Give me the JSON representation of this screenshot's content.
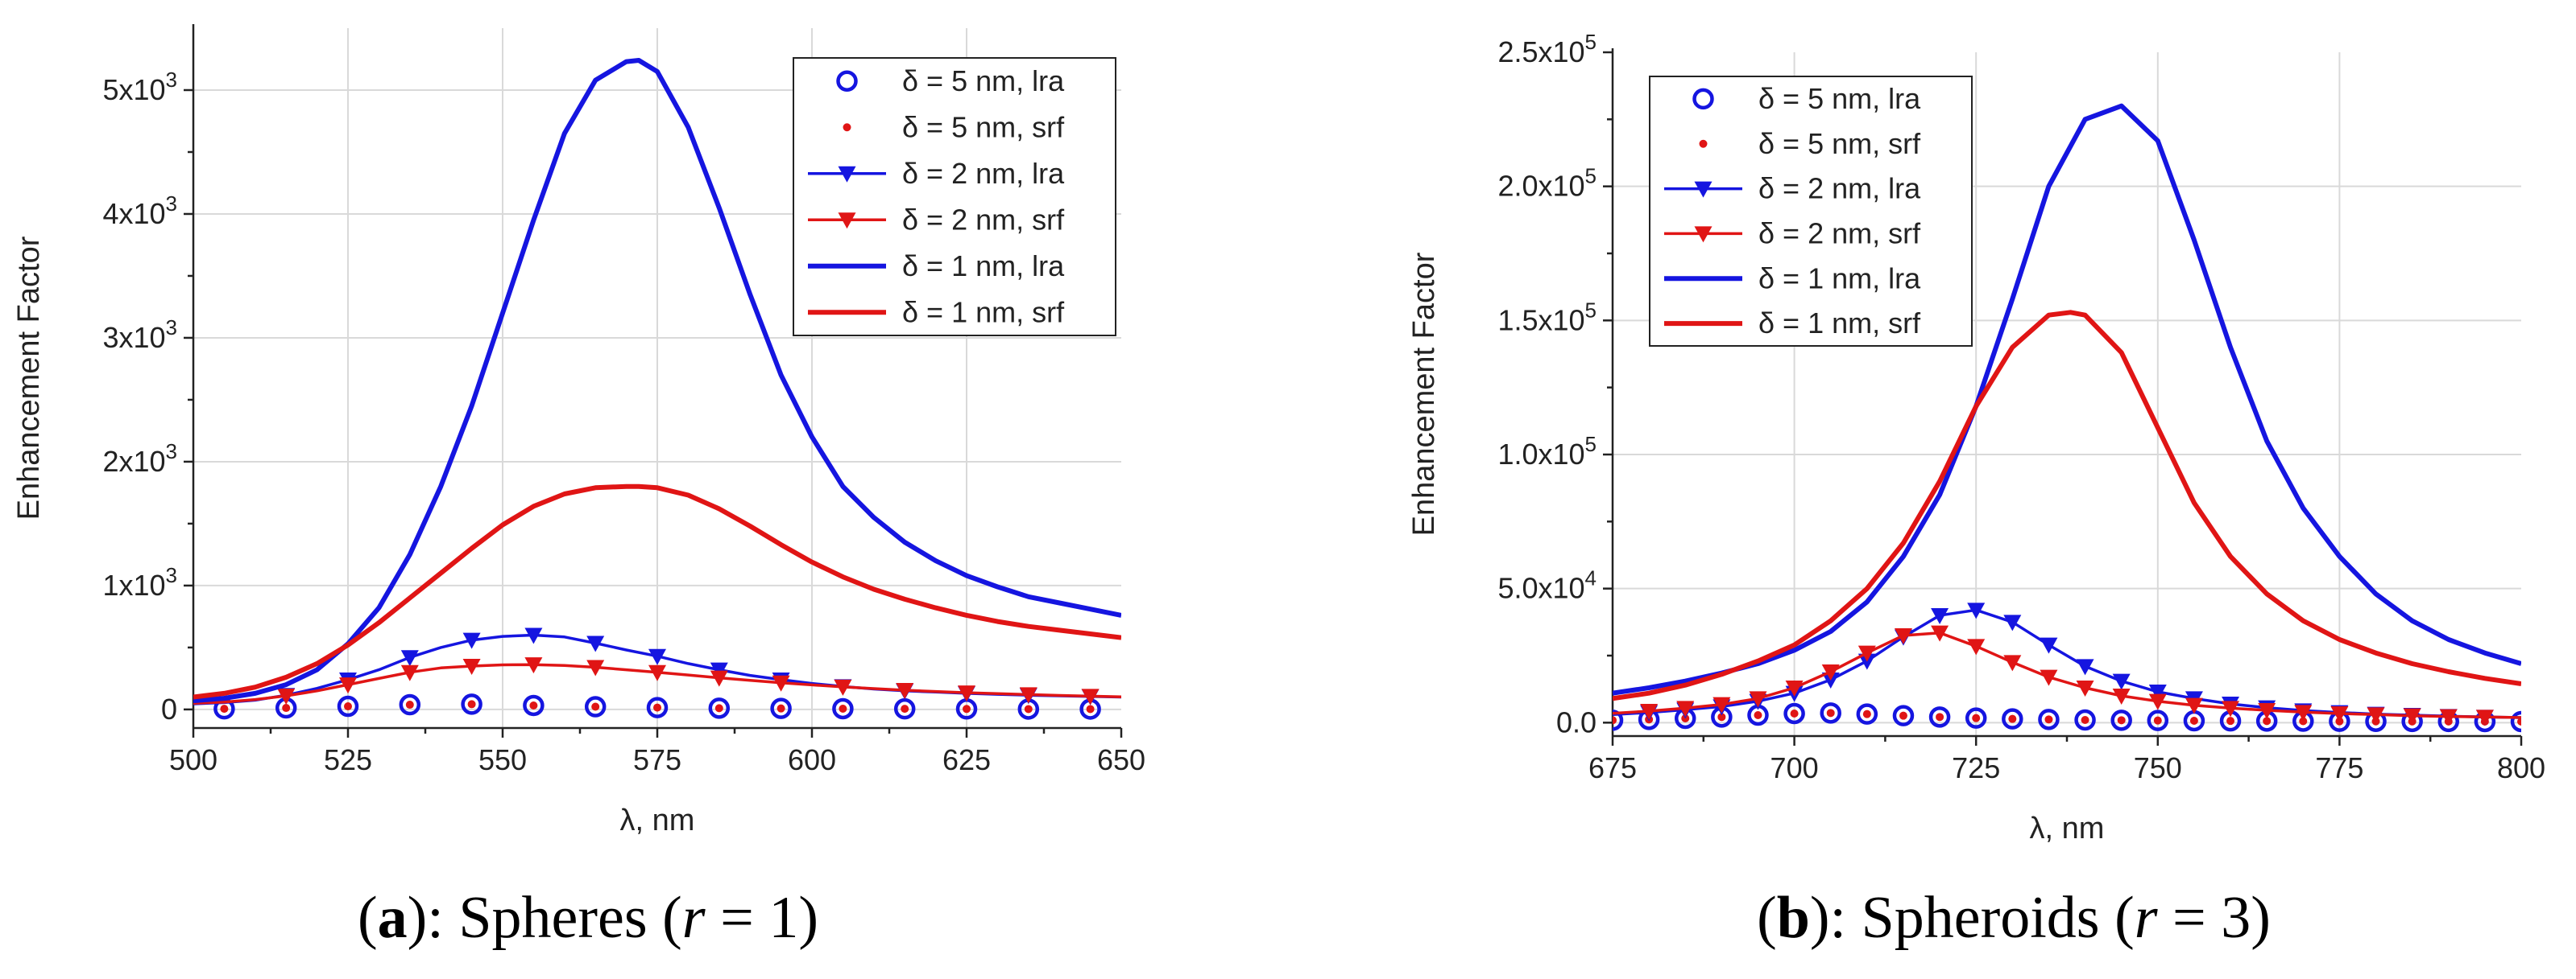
{
  "chart_data": [
    {
      "type": "line",
      "caption": {
        "letter": "a",
        "rest_before": "): Spheres (",
        "var": "r",
        "rest_after": " = 1)",
        "open": "("
      },
      "xlabel": "λ, nm",
      "ylabel": "Enhancement Factor",
      "xlim": [
        500,
        650
      ],
      "ylim": [
        -150,
        5500
      ],
      "xticks": [
        "500",
        "525",
        "550",
        "575",
        "600",
        "625",
        "650"
      ],
      "yticks": [
        {
          "value": 0,
          "mantissa": "0",
          "exp": ""
        },
        {
          "value": 1000,
          "mantissa": "1x10",
          "exp": "3"
        },
        {
          "value": 2000,
          "mantissa": "2x10",
          "exp": "3"
        },
        {
          "value": 3000,
          "mantissa": "3x10",
          "exp": "3"
        },
        {
          "value": 4000,
          "mantissa": "4x10",
          "exp": "3"
        },
        {
          "value": 5000,
          "mantissa": "5x10",
          "exp": "3"
        }
      ],
      "legend": [
        "δ = 5 nm, lra",
        "δ = 5 nm, srf",
        "δ = 2 nm, lra",
        "δ = 2 nm, srf",
        "δ = 1 nm, lra",
        "δ = 1 nm, srf"
      ],
      "series": [
        {
          "name": "δ = 5 nm, lra",
          "color": "#1515e0",
          "style": "circle",
          "x": [
            505,
            515,
            525,
            535,
            545,
            555,
            565,
            575,
            585,
            595,
            605,
            615,
            625,
            635,
            645
          ],
          "y": [
            5,
            12,
            25,
            38,
            42,
            32,
            22,
            15,
            10,
            8,
            6,
            5,
            4,
            3,
            3
          ]
        },
        {
          "name": "δ = 5 nm, srf",
          "color": "#e01515",
          "style": "dot",
          "x": [
            505,
            515,
            525,
            535,
            545,
            555,
            565,
            575,
            585,
            595,
            605,
            615,
            625,
            635,
            645
          ],
          "y": [
            5,
            12,
            25,
            38,
            42,
            32,
            22,
            15,
            10,
            8,
            6,
            5,
            4,
            3,
            3
          ]
        },
        {
          "name": "δ = 2 nm, lra",
          "color": "#1515e0",
          "style": "triangle",
          "x": [
            500,
            505,
            510,
            515,
            520,
            525,
            530,
            535,
            540,
            545,
            550,
            555,
            560,
            565,
            570,
            575,
            580,
            585,
            590,
            595,
            600,
            605,
            610,
            615,
            620,
            625,
            630,
            635,
            640,
            645,
            650
          ],
          "y": [
            45,
            55,
            75,
            115,
            170,
            240,
            320,
            420,
            500,
            560,
            590,
            600,
            585,
            535,
            480,
            430,
            370,
            320,
            275,
            240,
            210,
            185,
            165,
            150,
            140,
            130,
            122,
            115,
            110,
            105,
            100
          ],
          "markers": [
            515,
            525,
            535,
            545,
            555,
            565,
            575,
            585,
            595,
            605,
            615,
            625,
            635,
            645
          ]
        },
        {
          "name": "δ = 2 nm, srf",
          "color": "#e01515",
          "style": "triangle",
          "x": [
            500,
            505,
            510,
            515,
            520,
            525,
            530,
            535,
            540,
            545,
            550,
            555,
            560,
            565,
            570,
            575,
            580,
            585,
            590,
            595,
            600,
            605,
            610,
            615,
            620,
            625,
            630,
            635,
            640,
            645,
            650
          ],
          "y": [
            50,
            60,
            80,
            110,
            150,
            200,
            250,
            300,
            335,
            350,
            360,
            362,
            355,
            340,
            320,
            300,
            278,
            255,
            235,
            215,
            198,
            182,
            168,
            155,
            145,
            135,
            127,
            120,
            113,
            107,
            102
          ],
          "markers": [
            515,
            525,
            535,
            545,
            555,
            565,
            575,
            585,
            595,
            605,
            615,
            625,
            635,
            645
          ]
        },
        {
          "name": "δ = 1 nm, lra",
          "color": "#1515e0",
          "style": "line",
          "x": [
            500,
            505,
            510,
            515,
            520,
            525,
            530,
            535,
            540,
            545,
            550,
            555,
            560,
            565,
            570,
            572,
            575,
            580,
            585,
            590,
            595,
            600,
            605,
            610,
            615,
            620,
            625,
            630,
            635,
            640,
            645,
            650
          ],
          "y": [
            70,
            90,
            130,
            200,
            320,
            530,
            820,
            1250,
            1800,
            2450,
            3200,
            3950,
            4650,
            5080,
            5230,
            5240,
            5150,
            4700,
            4050,
            3350,
            2700,
            2200,
            1800,
            1550,
            1350,
            1200,
            1080,
            990,
            910,
            860,
            810,
            760
          ]
        },
        {
          "name": "δ = 1 nm, srf",
          "color": "#e01515",
          "style": "line",
          "x": [
            500,
            505,
            510,
            515,
            520,
            525,
            530,
            535,
            540,
            545,
            550,
            555,
            560,
            565,
            570,
            572,
            575,
            580,
            585,
            590,
            595,
            600,
            605,
            610,
            615,
            620,
            625,
            630,
            635,
            640,
            645,
            650
          ],
          "y": [
            100,
            130,
            180,
            260,
            370,
            520,
            700,
            900,
            1100,
            1300,
            1490,
            1640,
            1740,
            1790,
            1800,
            1800,
            1790,
            1730,
            1620,
            1480,
            1330,
            1190,
            1070,
            970,
            890,
            820,
            760,
            710,
            670,
            640,
            610,
            580
          ]
        }
      ]
    },
    {
      "type": "line",
      "caption": {
        "letter": "b",
        "rest_before": "): Spheroids (",
        "var": "r",
        "rest_after": " = 3)",
        "open": "("
      },
      "xlabel": "λ, nm",
      "ylabel": "Enhancement Factor",
      "xlim": [
        675,
        800
      ],
      "ylim": [
        -5000,
        250000
      ],
      "xticks": [
        "675",
        "700",
        "725",
        "750",
        "775",
        "800"
      ],
      "yticks": [
        {
          "value": 0,
          "mantissa": "0.0",
          "exp": ""
        },
        {
          "value": 50000,
          "mantissa": "5.0x10",
          "exp": "4"
        },
        {
          "value": 100000,
          "mantissa": "1.0x10",
          "exp": "5"
        },
        {
          "value": 150000,
          "mantissa": "1.5x10",
          "exp": "5"
        },
        {
          "value": 200000,
          "mantissa": "2.0x10",
          "exp": "5"
        },
        {
          "value": 250000,
          "mantissa": "2.5x10",
          "exp": "5"
        }
      ],
      "legend": [
        "δ = 5 nm, lra",
        "δ = 5 nm, srf",
        "δ = 2 nm, lra",
        "δ = 2 nm, srf",
        "δ = 1 nm, lra",
        "δ = 1 nm, srf"
      ],
      "series": [
        {
          "name": "δ = 5 nm, lra",
          "color": "#1515e0",
          "style": "circle",
          "x": [
            675,
            680,
            685,
            690,
            695,
            700,
            705,
            710,
            715,
            720,
            725,
            730,
            735,
            740,
            745,
            750,
            755,
            760,
            765,
            770,
            775,
            780,
            785,
            790,
            795,
            800
          ],
          "y": [
            900,
            1200,
            1600,
            2100,
            2800,
            3400,
            3600,
            3200,
            2600,
            2100,
            1700,
            1400,
            1200,
            1000,
            900,
            800,
            700,
            650,
            600,
            550,
            500,
            480,
            450,
            430,
            410,
            400
          ]
        },
        {
          "name": "δ = 5 nm, srf",
          "color": "#e01515",
          "style": "dot",
          "x": [
            675,
            680,
            685,
            690,
            695,
            700,
            705,
            710,
            715,
            720,
            725,
            730,
            735,
            740,
            745,
            750,
            755,
            760,
            765,
            770,
            775,
            780,
            785,
            790,
            795,
            800
          ],
          "y": [
            900,
            1200,
            1600,
            2100,
            2800,
            3400,
            3600,
            3200,
            2600,
            2100,
            1700,
            1400,
            1200,
            1000,
            900,
            800,
            700,
            650,
            600,
            550,
            500,
            480,
            450,
            430,
            410,
            400
          ]
        },
        {
          "name": "δ = 2 nm, lra",
          "color": "#1515e0",
          "style": "triangle",
          "x": [
            675,
            680,
            685,
            690,
            695,
            700,
            705,
            710,
            715,
            720,
            725,
            730,
            735,
            740,
            745,
            750,
            755,
            760,
            765,
            770,
            775,
            780,
            785,
            790,
            795,
            800
          ],
          "y": [
            3000,
            3800,
            4800,
            6000,
            8000,
            11000,
            16000,
            23000,
            32000,
            40000,
            42000,
            37500,
            29000,
            21000,
            15500,
            11500,
            9000,
            7000,
            5600,
            4500,
            3800,
            3200,
            2800,
            2400,
            2100,
            1900
          ],
          "markers": [
            680,
            685,
            690,
            695,
            700,
            705,
            710,
            715,
            720,
            725,
            730,
            735,
            740,
            745,
            750,
            755,
            760,
            765,
            770,
            775,
            780,
            785,
            790,
            795
          ]
        },
        {
          "name": "δ = 2 nm, srf",
          "color": "#e01515",
          "style": "triangle",
          "x": [
            675,
            680,
            685,
            690,
            695,
            700,
            705,
            710,
            715,
            720,
            725,
            730,
            735,
            740,
            745,
            750,
            755,
            760,
            765,
            770,
            775,
            780,
            785,
            790,
            795,
            800
          ],
          "y": [
            3500,
            4300,
            5400,
            6800,
            9000,
            13000,
            19000,
            26000,
            32500,
            33500,
            28500,
            22500,
            17000,
            13000,
            10000,
            8000,
            6500,
            5400,
            4600,
            3900,
            3400,
            3000,
            2600,
            2300,
            2100,
            1900
          ],
          "markers": [
            680,
            685,
            690,
            695,
            700,
            705,
            710,
            715,
            720,
            725,
            730,
            735,
            740,
            745,
            750,
            755,
            760,
            765,
            770,
            775,
            780,
            785,
            790,
            795
          ]
        },
        {
          "name": "δ = 1 nm, lra",
          "color": "#1515e0",
          "style": "line",
          "x": [
            675,
            680,
            685,
            690,
            695,
            700,
            705,
            710,
            715,
            720,
            725,
            730,
            735,
            740,
            745,
            750,
            755,
            760,
            765,
            770,
            775,
            780,
            785,
            790,
            795,
            800
          ],
          "y": [
            11000,
            13000,
            15500,
            18500,
            22000,
            27000,
            34000,
            45000,
            62000,
            85000,
            118000,
            158000,
            200000,
            225000,
            230000,
            217000,
            180000,
            140000,
            105000,
            80000,
            62000,
            48000,
            38000,
            31000,
            26000,
            22000
          ]
        },
        {
          "name": "δ = 1 nm, srf",
          "color": "#e01515",
          "style": "line",
          "x": [
            675,
            680,
            685,
            690,
            695,
            700,
            705,
            710,
            715,
            720,
            725,
            730,
            735,
            738,
            740,
            745,
            750,
            755,
            760,
            765,
            770,
            775,
            780,
            785,
            790,
            795,
            800
          ],
          "y": [
            9000,
            11000,
            14000,
            18000,
            23000,
            29000,
            38000,
            50000,
            67000,
            90000,
            118000,
            140000,
            152000,
            153000,
            152000,
            138000,
            110000,
            82000,
            62000,
            48000,
            38000,
            31000,
            26000,
            22000,
            19000,
            16500,
            14500
          ]
        }
      ]
    }
  ]
}
